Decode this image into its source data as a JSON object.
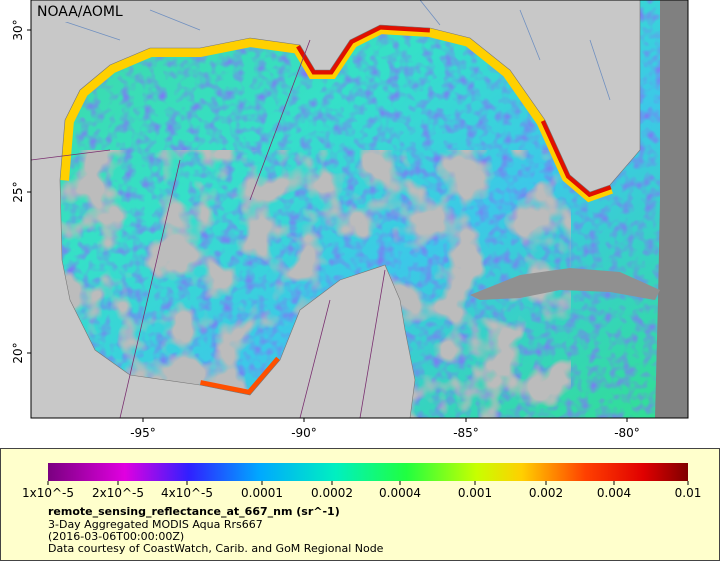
{
  "map": {
    "title": "NOAA/AOML",
    "lat_labels": [
      "30°",
      "25°",
      "20°"
    ],
    "lon_labels": [
      "-95°",
      "-90°",
      "-85°",
      "-80°"
    ]
  },
  "legend": {
    "labels": [
      "1x10^-5",
      "2x10^-5",
      "4x10^-5",
      "0.0001",
      "0.0002",
      "0.0004",
      "0.001",
      "0.002",
      "0.004",
      "0.01"
    ],
    "variable": "remote_sensing_reflectance_at_667_nm (sr^-1)",
    "description": "3-Day Aggregated MODIS Aqua Rrs667",
    "time": "(2016-03-06T00:00:00Z)",
    "credit": "Data courtesy of CoastWatch, Carib. and GoM Regional Node"
  }
}
